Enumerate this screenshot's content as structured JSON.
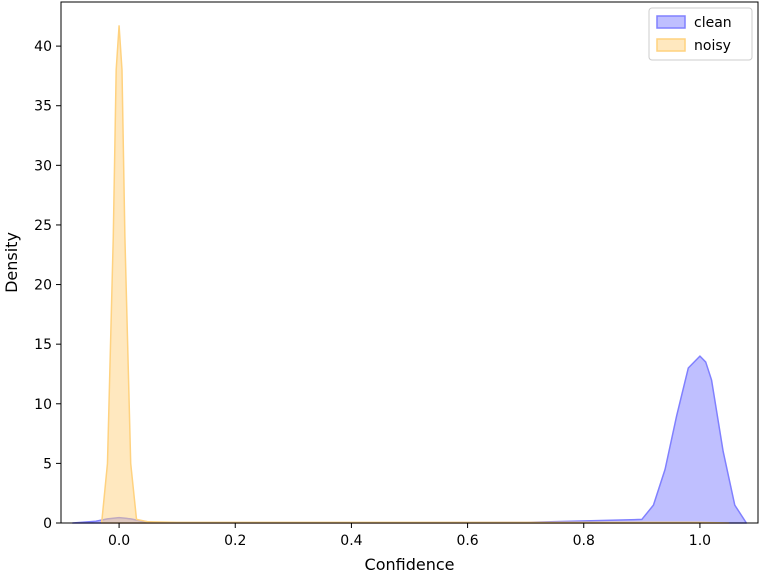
{
  "chart_data": {
    "type": "area",
    "title": "",
    "xlabel": "Confidence",
    "ylabel": "Density",
    "xlim": [
      -0.1,
      1.1
    ],
    "ylim": [
      0,
      43.7
    ],
    "xticks": [
      0.0,
      0.2,
      0.4,
      0.6,
      0.8,
      1.0
    ],
    "xtick_labels": [
      "0.0",
      "0.2",
      "0.4",
      "0.6",
      "0.8",
      "1.0"
    ],
    "yticks": [
      0,
      5,
      10,
      15,
      20,
      25,
      30,
      35,
      40
    ],
    "ytick_labels": [
      "0",
      "5",
      "10",
      "15",
      "20",
      "25",
      "30",
      "35",
      "40"
    ],
    "grid": false,
    "legend_position": "top-right",
    "series": [
      {
        "name": "clean",
        "color": "#8080ff",
        "x": [
          -0.08,
          -0.04,
          -0.02,
          0.0,
          0.02,
          0.04,
          0.06,
          0.1,
          0.3,
          0.5,
          0.7,
          0.9,
          0.92,
          0.94,
          0.96,
          0.98,
          1.0,
          1.01,
          1.02,
          1.04,
          1.06,
          1.08
        ],
        "y": [
          0.0,
          0.15,
          0.35,
          0.45,
          0.35,
          0.15,
          0.05,
          0.03,
          0.03,
          0.03,
          0.05,
          0.3,
          1.5,
          4.5,
          9.0,
          13.0,
          14.0,
          13.5,
          12.0,
          6.0,
          1.5,
          0.0
        ]
      },
      {
        "name": "noisy",
        "color": "#ffd27f",
        "x": [
          -0.03,
          -0.02,
          -0.01,
          -0.005,
          0.0,
          0.005,
          0.01,
          0.02,
          0.03,
          0.05,
          0.1,
          0.3,
          0.5,
          0.7,
          0.9,
          1.0,
          1.05
        ],
        "y": [
          0.0,
          5.0,
          24.0,
          38.0,
          41.7,
          38.0,
          24.0,
          5.0,
          0.3,
          0.1,
          0.05,
          0.05,
          0.05,
          0.05,
          0.05,
          0.05,
          0.0
        ]
      }
    ]
  }
}
